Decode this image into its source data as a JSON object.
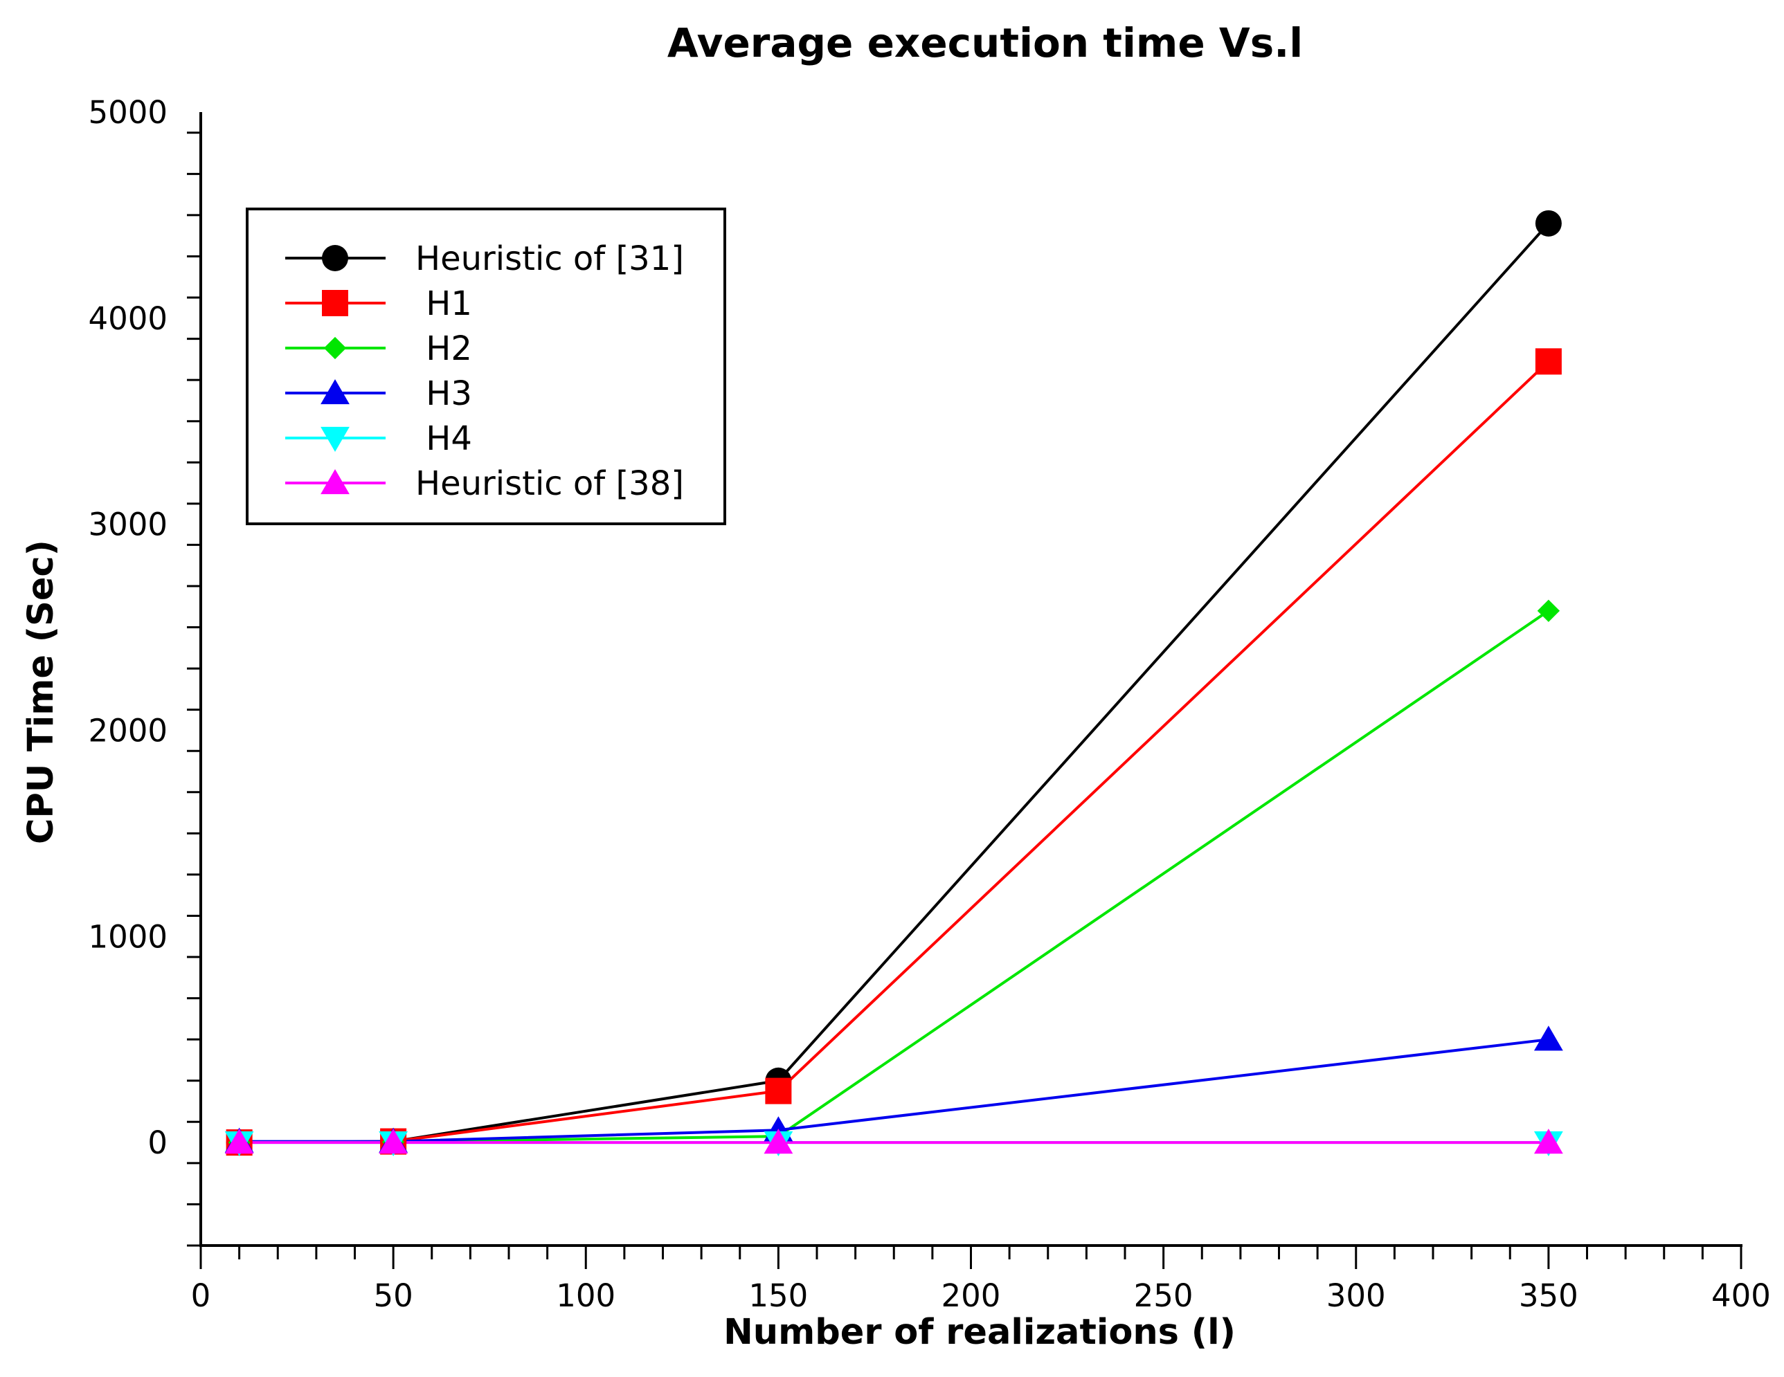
{
  "chart_data": {
    "type": "line",
    "title": "Average execution time Vs.l",
    "xlabel": "Number of realizations (l)",
    "ylabel": "CPU Time (Sec)",
    "xlim": [
      0,
      400
    ],
    "ylim": [
      -500,
      5000
    ],
    "xticks": [
      0,
      50,
      100,
      150,
      200,
      250,
      300,
      350,
      400
    ],
    "yticks": [
      0,
      1000,
      2000,
      3000,
      4000,
      5000
    ],
    "x": [
      10,
      50,
      150,
      350
    ],
    "grid": false,
    "legend_position": "top-left",
    "series": [
      {
        "name": "Heuristic of [31]",
        "color": "#000000",
        "marker": "circle",
        "values": [
          0,
          5,
          300,
          4460
        ]
      },
      {
        "name": " H1",
        "color": "#ff0000",
        "marker": "square",
        "values": [
          0,
          5,
          250,
          3790
        ]
      },
      {
        "name": " H2",
        "color": "#00e600",
        "marker": "diamond",
        "values": [
          0,
          3,
          30,
          2580
        ]
      },
      {
        "name": " H3",
        "color": "#0000ee",
        "marker": "triangle-up",
        "values": [
          5,
          5,
          60,
          500
        ]
      },
      {
        "name": " H4",
        "color": "#00ffff",
        "marker": "triangle-down",
        "values": [
          0,
          0,
          0,
          0
        ]
      },
      {
        "name": "Heuristic of [38]",
        "color": "#ff00ff",
        "marker": "triangle-up",
        "values": [
          0,
          0,
          0,
          0
        ]
      }
    ]
  }
}
